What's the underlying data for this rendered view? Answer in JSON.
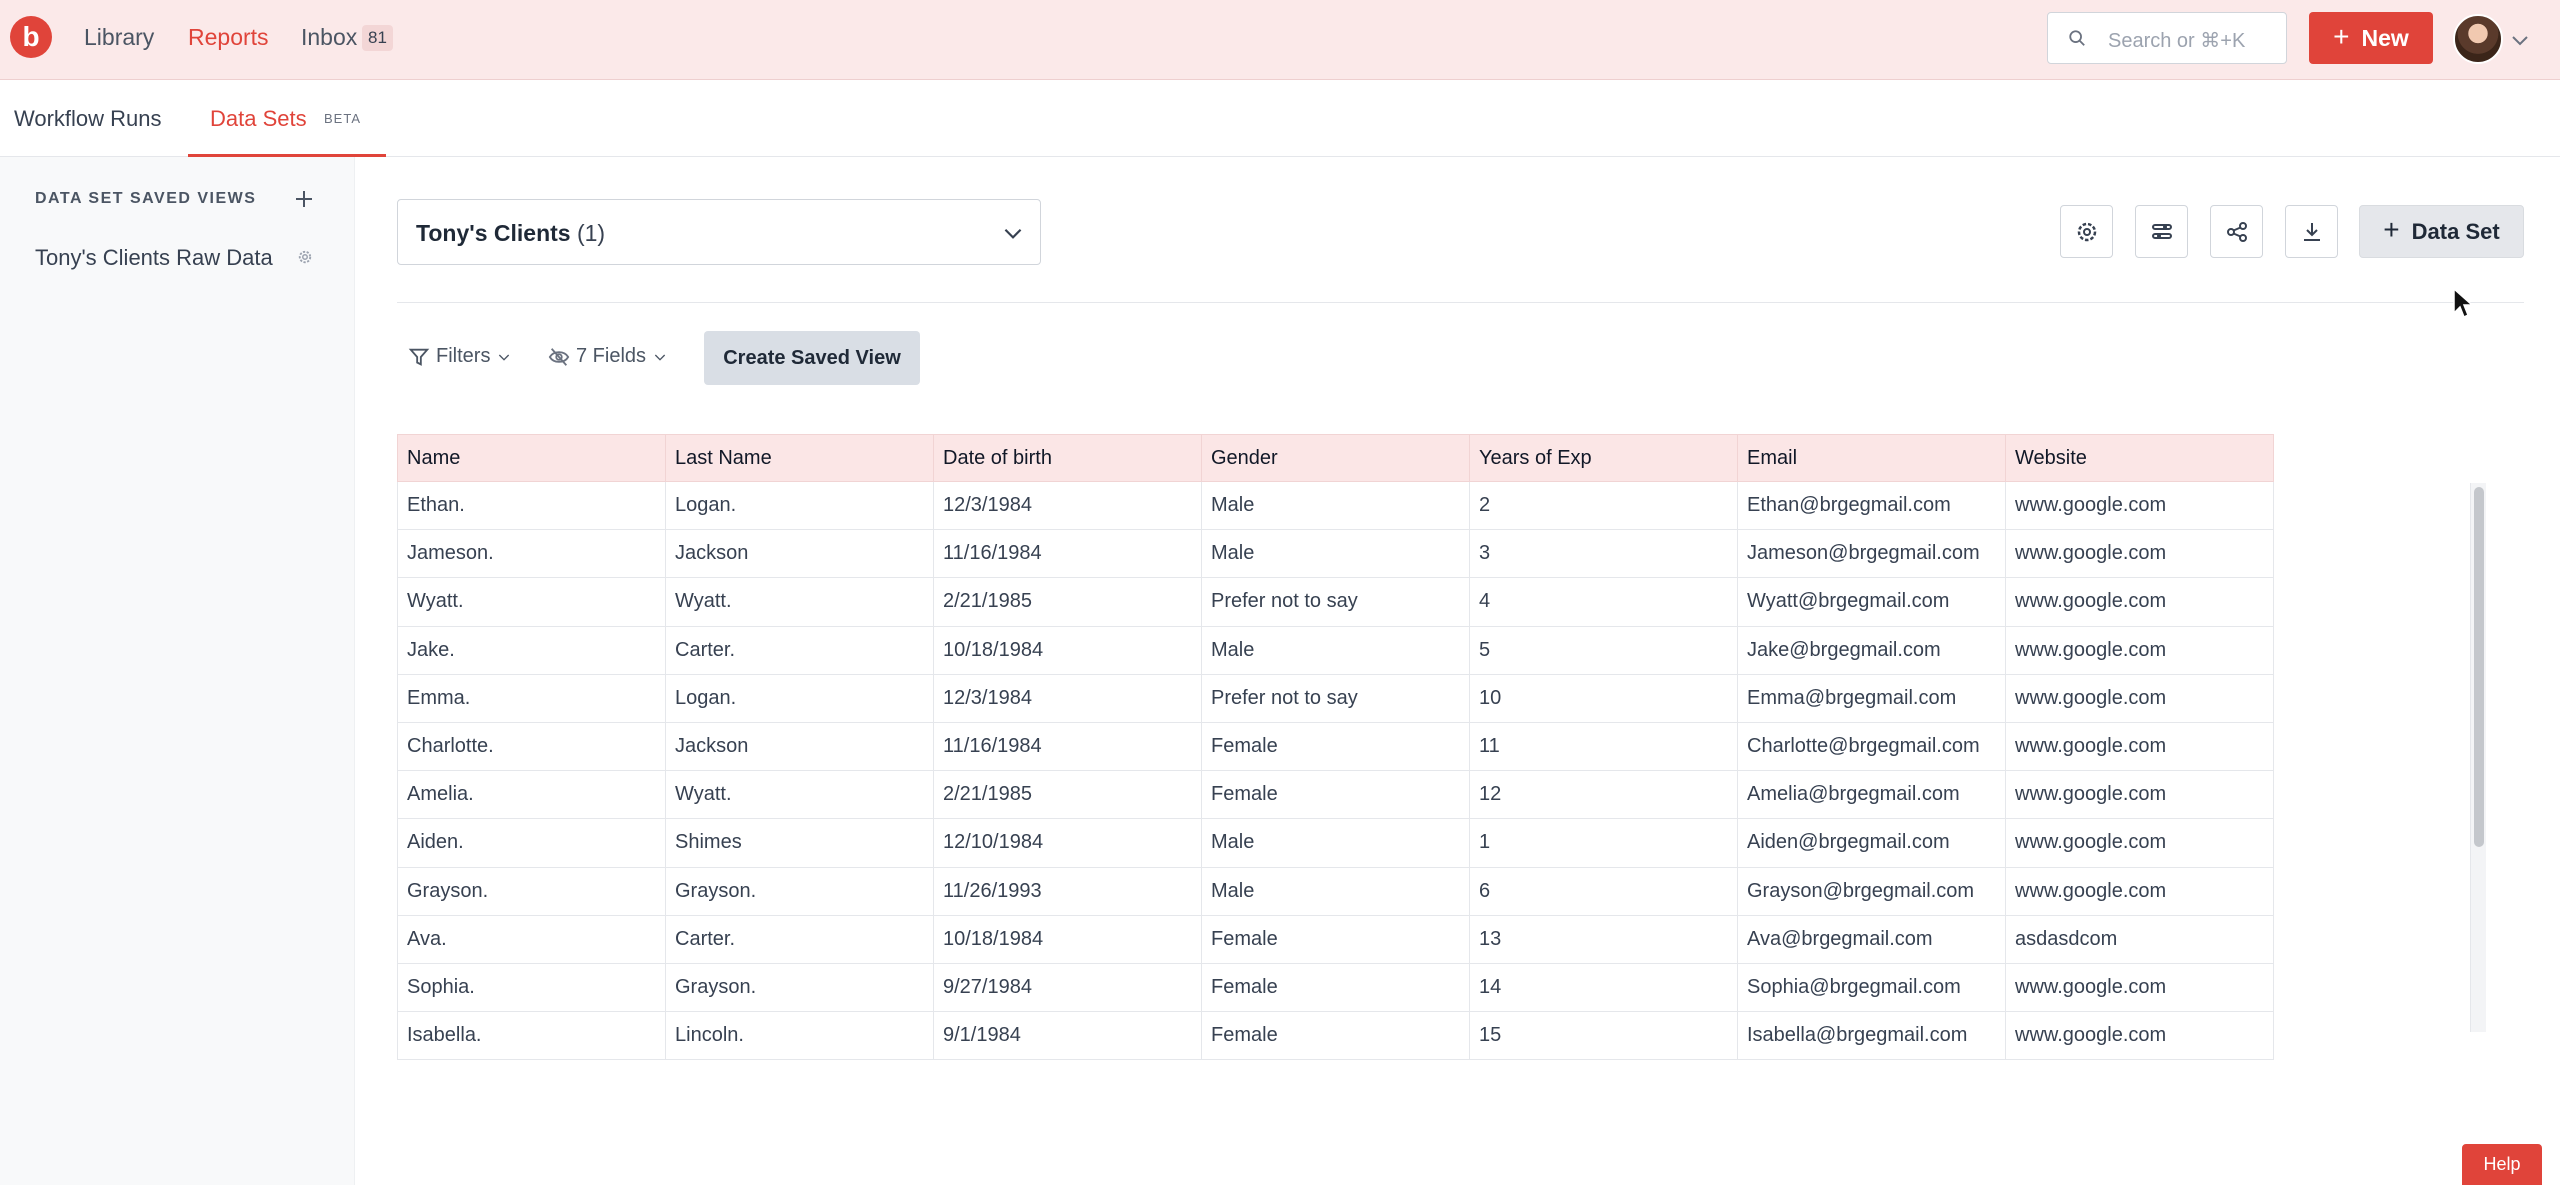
{
  "topnav": {
    "logo_letter": "b",
    "links": [
      {
        "label": "Library"
      },
      {
        "label": "Reports"
      },
      {
        "label": "Inbox"
      }
    ],
    "inbox_count": "81",
    "search_placeholder": "Search or ⌘+K",
    "new_label": "New"
  },
  "subnav": {
    "tabs": [
      {
        "label": "Workflow Runs"
      },
      {
        "label": "Data Sets"
      }
    ],
    "beta_label": "BETA"
  },
  "sidebar": {
    "heading": "DATA SET SAVED VIEWS",
    "items": [
      {
        "label": "Tony's Clients Raw Data"
      }
    ]
  },
  "main": {
    "dataset_name": "Tony's Clients",
    "dataset_count": "(1)",
    "dataset_button": "Data Set",
    "filters_label": "Filters",
    "fields_label": "7 Fields",
    "create_view_label": "Create Saved View",
    "columns": [
      "Name",
      "Last Name",
      "Date of birth",
      "Gender",
      "Years of Exp",
      "Email",
      "Website"
    ],
    "rows": [
      [
        "Ethan.",
        "Logan.",
        "12/3/1984",
        "Male",
        "2",
        "Ethan@brgegmail.com",
        "www.google.com"
      ],
      [
        "Jameson.",
        "Jackson",
        "11/16/1984",
        "Male",
        "3",
        "Jameson@brgegmail.com",
        "www.google.com"
      ],
      [
        "Wyatt.",
        "Wyatt.",
        "2/21/1985",
        "Prefer not to say",
        "4",
        "Wyatt@brgegmail.com",
        "www.google.com"
      ],
      [
        "Jake.",
        "Carter.",
        "10/18/1984",
        "Male",
        "5",
        "Jake@brgegmail.com",
        "www.google.com"
      ],
      [
        "Emma.",
        "Logan.",
        "12/3/1984",
        "Prefer not to say",
        "10",
        "Emma@brgegmail.com",
        "www.google.com"
      ],
      [
        "Charlotte.",
        "Jackson",
        "11/16/1984",
        "Female",
        "11",
        "Charlotte@brgegmail.com",
        "www.google.com"
      ],
      [
        "Amelia.",
        "Wyatt.",
        "2/21/1985",
        "Female",
        "12",
        "Amelia@brgegmail.com",
        "www.google.com"
      ],
      [
        "Aiden.",
        "Shimes",
        "12/10/1984",
        "Male",
        "1",
        "Aiden@brgegmail.com",
        "www.google.com"
      ],
      [
        "Grayson.",
        "Grayson.",
        "11/26/1993",
        "Male",
        "6",
        "Grayson@brgegmail.com",
        "www.google.com"
      ],
      [
        "Ava.",
        "Carter.",
        "10/18/1984",
        "Female",
        "13",
        "Ava@brgegmail.com",
        "asdasdcom"
      ],
      [
        "Sophia.",
        "Grayson.",
        "9/27/1984",
        "Female",
        "14",
        "Sophia@brgegmail.com",
        "www.google.com"
      ],
      [
        "Isabella.",
        "Lincoln.",
        "9/1/1984",
        "Female",
        "15",
        "Isabella@brgegmail.com",
        "www.google.com"
      ]
    ]
  },
  "help_label": "Help",
  "colors": {
    "accent": "#e0443a",
    "nav_bg": "#fbe9e9",
    "header_bg": "#fbe6e6"
  }
}
